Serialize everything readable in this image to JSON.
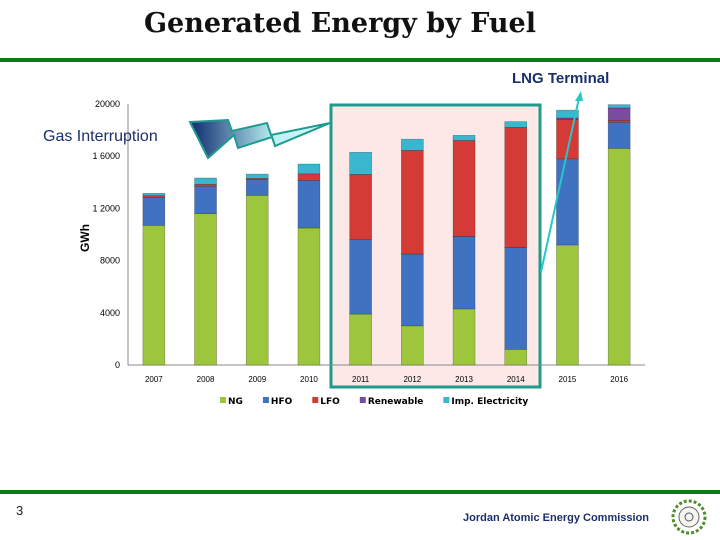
{
  "page": {
    "title": "Generated Energy by Fuel",
    "page_number": "3",
    "organization": "Jordan Atomic Energy Commission",
    "annotation_gas": "Gas Interruption",
    "annotation_lng": "LNG Terminal"
  },
  "colors": {
    "rule": "#0a7d16",
    "highlight_border": "#1e9a8e",
    "highlight_fill": "#fde8e8"
  },
  "chart_data": {
    "type": "bar",
    "stacked": true,
    "title": "Generated Energy by Fuel",
    "xlabel": "",
    "ylabel": "GWh",
    "ylim": [
      0,
      20000
    ],
    "yticks": [
      "0",
      "4000",
      "8000",
      "1 2000",
      "1 6000",
      "20000"
    ],
    "ytick_values": [
      0,
      4000,
      8000,
      12000,
      16000,
      20000
    ],
    "categories": [
      "2007",
      "2008",
      "2009",
      "2010",
      "2011",
      "2012",
      "2013",
      "2014",
      "2015",
      "2016"
    ],
    "legend_position": "bottom",
    "series": [
      {
        "name": "NG",
        "color": "#9dc63c",
        "values": [
          10700,
          11600,
          13000,
          10500,
          3900,
          3000,
          4300,
          1200,
          9200,
          16600
        ]
      },
      {
        "name": "HFO",
        "color": "#3f73c1",
        "values": [
          2150,
          2100,
          1200,
          3650,
          5700,
          5500,
          5550,
          7800,
          6600,
          2000
        ]
      },
      {
        "name": "LFO",
        "color": "#d43a36",
        "values": [
          130,
          150,
          100,
          500,
          5000,
          7950,
          7350,
          9200,
          3000,
          150
        ]
      },
      {
        "name": "Renewable",
        "color": "#7a4ca0",
        "values": [
          0,
          0,
          0,
          0,
          0,
          0,
          0,
          0,
          130,
          950
        ]
      },
      {
        "name": "Imp. Electricity",
        "color": "#3ab6cf",
        "values": [
          180,
          480,
          330,
          750,
          1700,
          850,
          400,
          450,
          600,
          250
        ]
      }
    ],
    "highlight_range": [
      "2011",
      "2014"
    ]
  }
}
